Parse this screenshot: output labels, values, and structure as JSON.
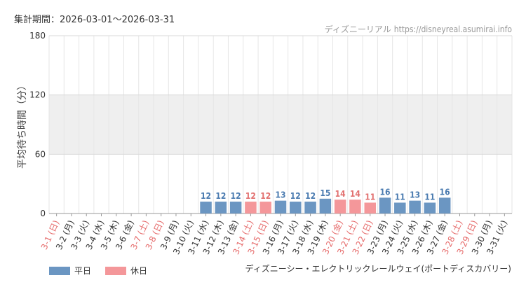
{
  "period": {
    "label": "集計期間：",
    "value": "2026-03-01～2026-03-31"
  },
  "credit": {
    "site_name": "ディズニーリアル",
    "url": "https://disneyreal.asumirai.info"
  },
  "attraction_name": "ディズニーシー・エレクトリックレールウェイ(ポートディスカバリー)",
  "colors": {
    "weekday": "#6b96c2",
    "holiday": "#f4979a",
    "weekday_label": "#4a7bb0",
    "holiday_label": "#e2706f",
    "holiday_axis_label": "#e66b6b",
    "weekday_axis_label": "#333333",
    "band": "#efefef",
    "grid": "#e6e6e6"
  },
  "legend": [
    {
      "label": "平日",
      "color_key": "weekday"
    },
    {
      "label": "休日",
      "color_key": "holiday"
    }
  ],
  "chart_data": {
    "type": "bar",
    "ylabel": "平均待ち時間（分）",
    "ylim": [
      0,
      180
    ],
    "yticks": [
      0,
      60,
      120,
      180
    ],
    "shaded_band": [
      60,
      120
    ],
    "categories": [
      "3-1 (日)",
      "3-2 (月)",
      "3-3 (火)",
      "3-4 (水)",
      "3-5 (木)",
      "3-6 (金)",
      "3-7 (土)",
      "3-8 (日)",
      "3-9 (月)",
      "3-10 (火)",
      "3-11 (水)",
      "3-12 (木)",
      "3-13 (金)",
      "3-14 (土)",
      "3-15 (日)",
      "3-16 (月)",
      "3-17 (火)",
      "3-18 (水)",
      "3-19 (木)",
      "3-20 (金)",
      "3-21 (土)",
      "3-22 (日)",
      "3-23 (月)",
      "3-24 (火)",
      "3-25 (水)",
      "3-26 (木)",
      "3-27 (金)",
      "3-28 (土)",
      "3-29 (日)",
      "3-30 (月)",
      "3-31 (火)"
    ],
    "values": [
      null,
      null,
      null,
      null,
      null,
      null,
      null,
      null,
      null,
      null,
      12,
      12,
      12,
      12,
      12,
      13,
      12,
      12,
      15,
      14,
      14,
      11,
      16,
      11,
      13,
      11,
      16,
      null,
      null,
      null,
      null
    ],
    "day_type": [
      "holiday",
      "weekday",
      "weekday",
      "weekday",
      "weekday",
      "weekday",
      "holiday",
      "holiday",
      "weekday",
      "weekday",
      "weekday",
      "weekday",
      "weekday",
      "holiday",
      "holiday",
      "weekday",
      "weekday",
      "weekday",
      "weekday",
      "holiday",
      "holiday",
      "holiday",
      "weekday",
      "weekday",
      "weekday",
      "weekday",
      "weekday",
      "holiday",
      "holiday",
      "weekday",
      "weekday"
    ],
    "legend_position": "bottom-left",
    "grid": true
  }
}
